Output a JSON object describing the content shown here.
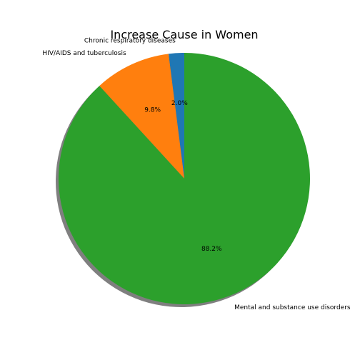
{
  "chart_data": {
    "type": "pie",
    "title": "Increase Cause in Women",
    "start_angle_deg": 90,
    "direction": "counterclockwise",
    "shadow": true,
    "slices": [
      {
        "label": "Chronic respiratory diseases",
        "value": 2.0,
        "pct_label": "2.0%",
        "color": "#1f77b4"
      },
      {
        "label": "HIV/AIDS and tuberculosis",
        "value": 9.8,
        "pct_label": "9.8%",
        "color": "#ff7f0e"
      },
      {
        "label": "Mental and substance use disorders",
        "value": 88.2,
        "pct_label": "88.2%",
        "color": "#2ca02c"
      }
    ]
  }
}
